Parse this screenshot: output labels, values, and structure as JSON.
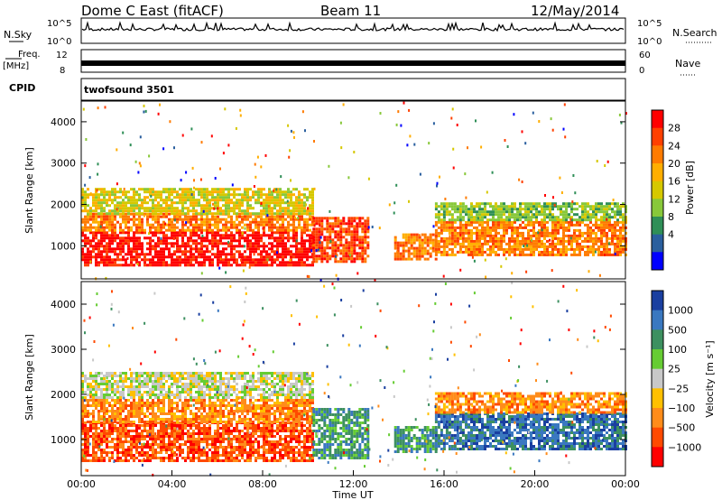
{
  "header": {
    "station": "Dome C East (fitACF)",
    "beam": "Beam 11",
    "date": "12/May/2014"
  },
  "panels": {
    "nsky": {
      "label": "N.Sky",
      "ticks_left": [
        "10^5",
        "10^0"
      ],
      "ticks_right": [
        "10^5",
        "10^0"
      ],
      "right_label": "N.Search"
    },
    "freq": {
      "label_line1": "Freq.",
      "label_line2": "[MHz]",
      "ticks_left": [
        "12",
        "8"
      ],
      "ticks_right": [
        "60",
        "0"
      ],
      "right_label": "Nave"
    },
    "cpid": {
      "label": "CPID",
      "program": "twofsound 3501"
    }
  },
  "chart_data": [
    {
      "type": "heatmap",
      "name": "power",
      "xlabel": "",
      "ylabel": "Slant Range [km]",
      "xlim": [
        0,
        24
      ],
      "ylim": [
        200,
        4500
      ],
      "yticks": [
        "1000",
        "2000",
        "3000",
        "4000"
      ],
      "colorbar": {
        "label": "Power [dB]",
        "ticks": [
          "28",
          "24",
          "20",
          "16",
          "12",
          "8",
          "4"
        ],
        "colors": [
          "#ff0000",
          "#ff4000",
          "#ff7b00",
          "#ffae00",
          "#d6c800",
          "#88c83a",
          "#2f8f57",
          "#2a5f9e",
          "#0000ff"
        ]
      },
      "regions": [
        {
          "t0": 0.0,
          "t1": 10.2,
          "r0": 500,
          "r1": 1350,
          "level": 0
        },
        {
          "t0": 0.0,
          "t1": 10.2,
          "r0": 1350,
          "r1": 1800,
          "level": 2
        },
        {
          "t0": 0.0,
          "t1": 10.2,
          "r0": 1800,
          "r1": 2400,
          "level": 4
        },
        {
          "t0": 10.2,
          "t1": 12.6,
          "r0": 600,
          "r1": 1700,
          "level": 1
        },
        {
          "t0": 13.8,
          "t1": 15.6,
          "r0": 700,
          "r1": 1300,
          "level": 2
        },
        {
          "t0": 15.6,
          "t1": 24.0,
          "r0": 800,
          "r1": 1600,
          "level": 2
        },
        {
          "t0": 15.6,
          "t1": 24.0,
          "r0": 1600,
          "r1": 2050,
          "level": 5
        }
      ]
    },
    {
      "type": "heatmap",
      "name": "velocity",
      "xlabel": "Time UT",
      "ylabel": "Slant Range [km]",
      "xlim": [
        0,
        24
      ],
      "ylim": [
        200,
        4500
      ],
      "xticks": [
        "00:00",
        "04:00",
        "08:00",
        "12:00",
        "16:00",
        "20:00",
        "00:00"
      ],
      "yticks": [
        "1000",
        "2000",
        "3000",
        "4000"
      ],
      "colorbar": {
        "label": "Velocity [m s⁻¹]",
        "ticks": [
          "1000",
          "500",
          "100",
          "25",
          "−25",
          "−100",
          "−500",
          "−1000"
        ],
        "colors": [
          "#1a3fa0",
          "#3a78c0",
          "#3d9060",
          "#66cc33",
          "#c8c8c8",
          "#ffc000",
          "#ff8c1a",
          "#ff4a00",
          "#ff0000"
        ]
      },
      "regions": [
        {
          "t0": 0.0,
          "t1": 10.2,
          "r0": 500,
          "r1": 1400,
          "level": 7
        },
        {
          "t0": 0.0,
          "t1": 10.2,
          "r0": 1400,
          "r1": 1900,
          "level": 6
        },
        {
          "t0": 0.0,
          "t1": 10.2,
          "r0": 1900,
          "r1": 2500,
          "level": 4
        },
        {
          "t0": 10.2,
          "t1": 12.6,
          "r0": 600,
          "r1": 1700,
          "level": 2
        },
        {
          "t0": 13.8,
          "t1": 15.6,
          "r0": 700,
          "r1": 1300,
          "level": 2
        },
        {
          "t0": 15.6,
          "t1": 24.0,
          "r0": 800,
          "r1": 1600,
          "level": 1
        },
        {
          "t0": 15.6,
          "t1": 24.0,
          "r0": 1600,
          "r1": 2050,
          "level": 6
        }
      ]
    }
  ]
}
